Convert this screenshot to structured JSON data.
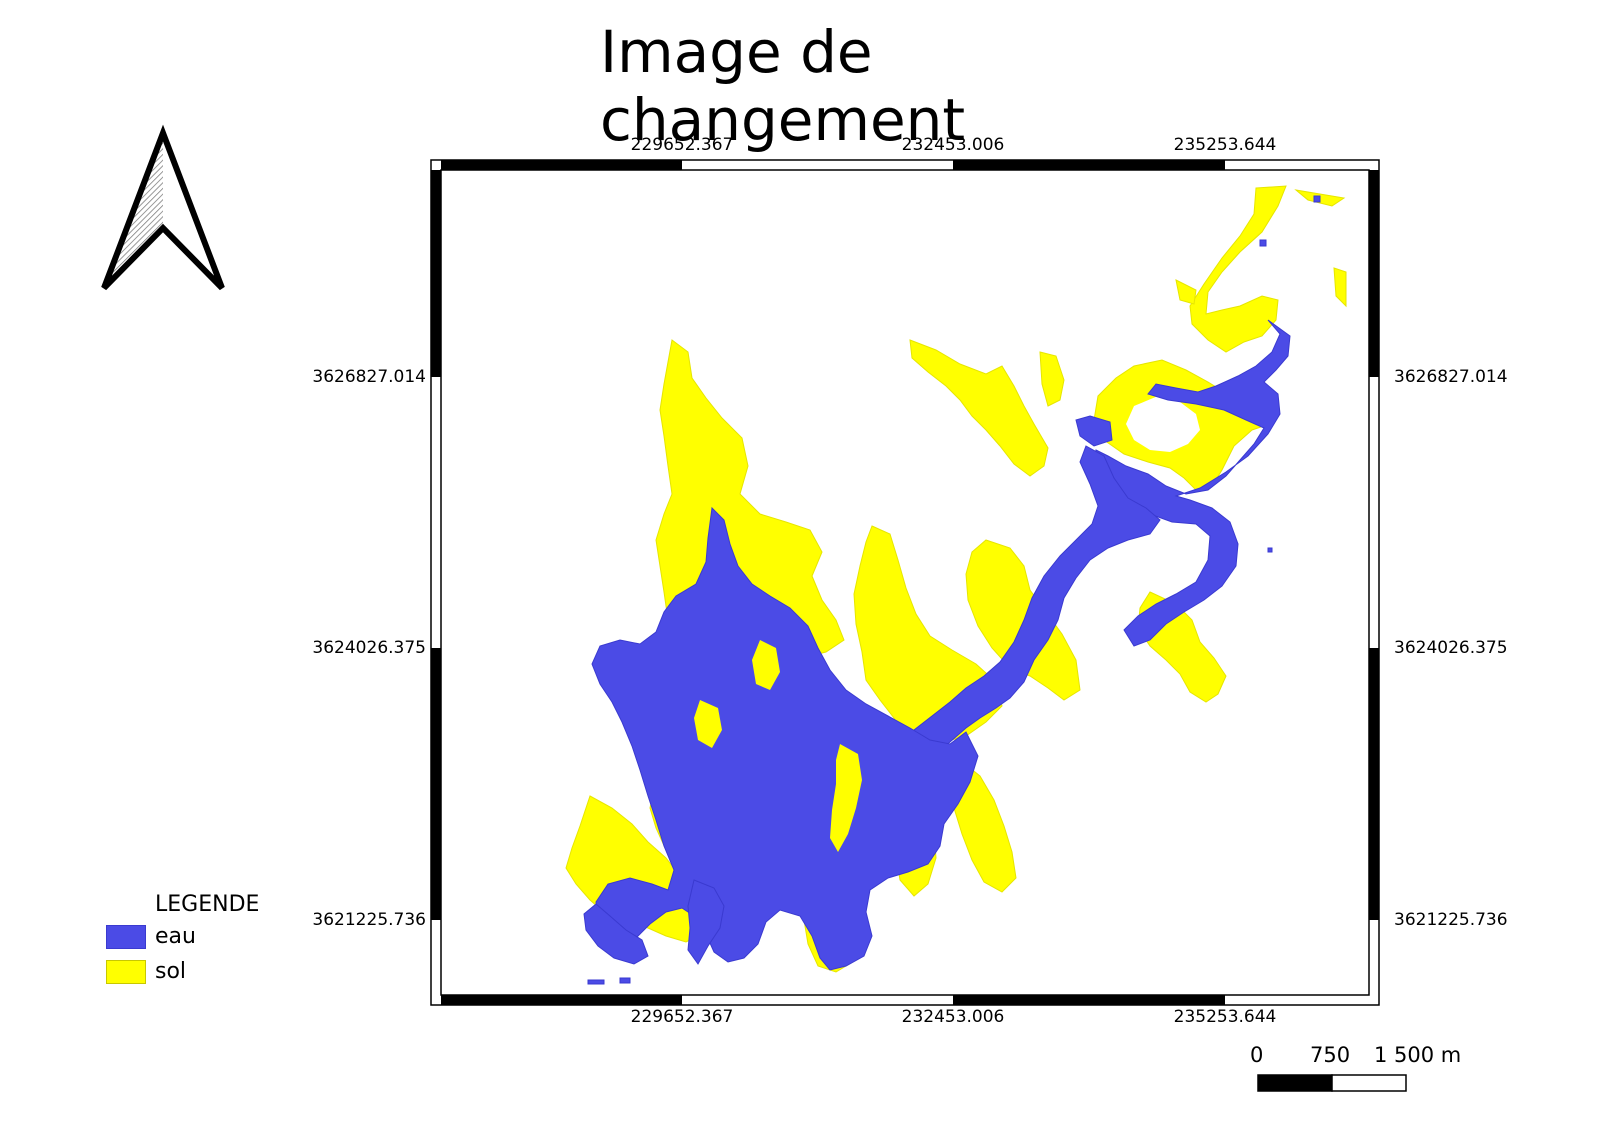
{
  "title": "Image de changement",
  "map": {
    "x_ticks": [
      "229652.367",
      "232453.006",
      "235253.644"
    ],
    "y_ticks": [
      "3626827.014",
      "3624026.375",
      "3621225.736"
    ]
  },
  "legend": {
    "title": "LEGENDE",
    "items": [
      {
        "label": "eau",
        "color": "#4b4be6"
      },
      {
        "label": "sol",
        "color": "#ffff00"
      }
    ]
  },
  "scale_bar": {
    "labels": [
      "0",
      "750",
      "1 500 m"
    ]
  },
  "north_arrow": {
    "icon": "north-arrow-icon"
  }
}
